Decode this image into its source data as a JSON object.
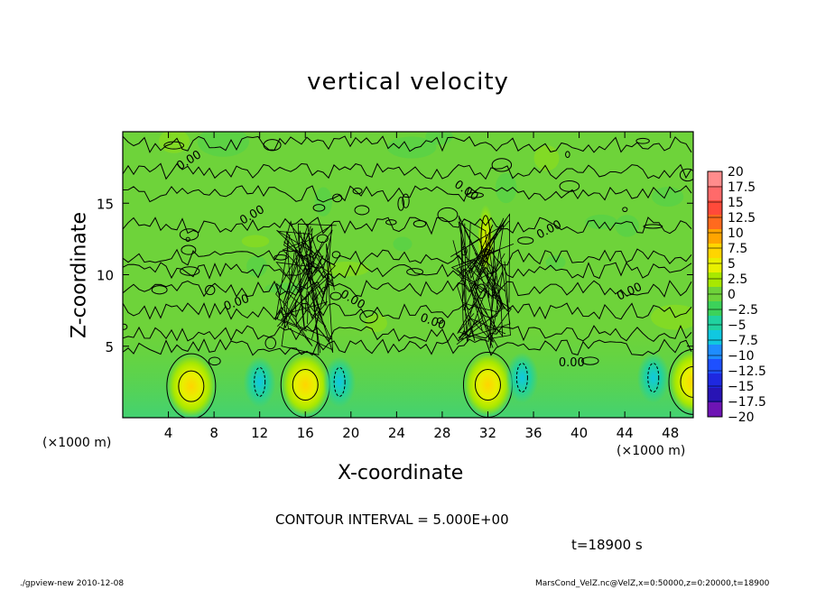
{
  "chart_data": {
    "type": "heatmap",
    "title": "vertical velocity",
    "xlabel": "X-coordinate",
    "ylabel": "Z-coordinate",
    "x_unit_label": "(×1000 m)",
    "xlim": [
      0,
      50
    ],
    "ylim": [
      0,
      20
    ],
    "x_ticks": [
      4,
      8,
      12,
      16,
      20,
      24,
      28,
      32,
      36,
      40,
      44,
      48
    ],
    "y_ticks": [
      5,
      10,
      15
    ],
    "colorbar": {
      "levels": [
        "20",
        "17.5",
        "15",
        "12.5",
        "10",
        "7.5",
        "5",
        "2.5",
        "0",
        "−2.5",
        "−5",
        "−7.5",
        "−10",
        "−12.5",
        "−15",
        "−17.5",
        "−20"
      ],
      "colors": [
        "#ff8c8c",
        "#ff6a6a",
        "#ff4a3a",
        "#ff6a1e",
        "#ffa500",
        "#ffd500",
        "#e8f000",
        "#a8e800",
        "#6ed33a",
        "#3cd25a",
        "#20d2a0",
        "#10c8e0",
        "#1e8cff",
        "#1e50ff",
        "#1e28e0",
        "#2814b4",
        "#6e14b4"
      ]
    },
    "contour_label": "0.00",
    "updraft_cores": [
      {
        "x": 6,
        "z": 2.2,
        "w": 7.5
      },
      {
        "x": 16,
        "z": 2.3,
        "w": 7.5
      },
      {
        "x": 32,
        "z": 2.3,
        "w": 7.5
      },
      {
        "x": 50,
        "z": 2.5,
        "w": 5
      },
      {
        "x": 31.8,
        "z": 12.5,
        "w": 5
      }
    ],
    "downdraft_cores": [
      {
        "x": 12,
        "z": 2.5,
        "w": -5
      },
      {
        "x": 19,
        "z": 2.5,
        "w": -5
      },
      {
        "x": 35,
        "z": 2.8,
        "w": -5
      },
      {
        "x": 46.5,
        "z": 2.8,
        "w": -5
      }
    ]
  },
  "annotations": {
    "x_unit_left": "(×1000 m)",
    "x_unit_right": "(×1000 m)",
    "contour_interval": "CONTOUR INTERVAL = 5.000E+00",
    "time": "t=18900 s",
    "footer_left": "./gpview-new   2010-12-08",
    "footer_right": "MarsCond_VelZ.nc@VelZ,x=0:50000,z=0:20000,t=18900"
  }
}
